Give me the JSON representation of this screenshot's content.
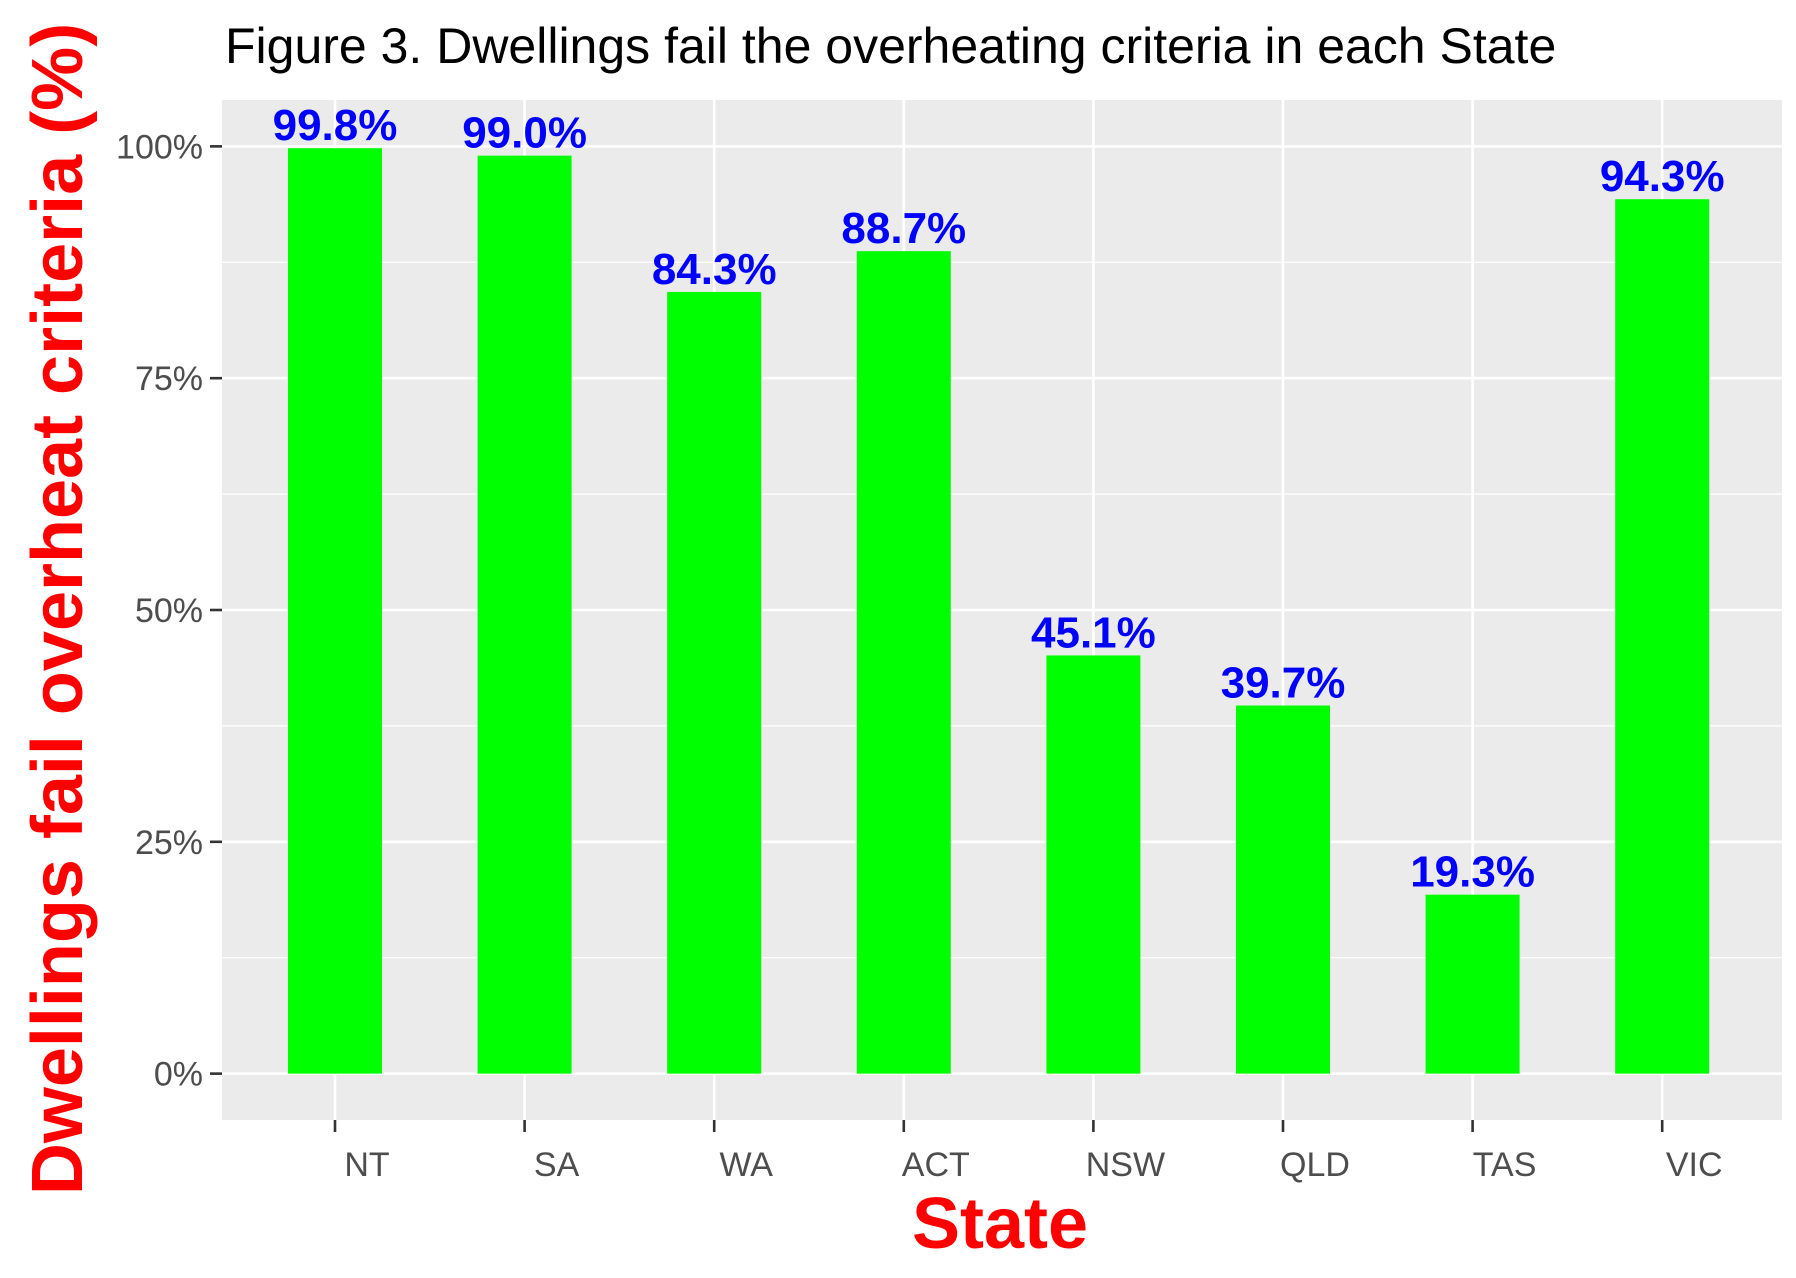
{
  "chart_data": {
    "type": "bar",
    "title": "Figure 3. Dwellings fail the overheating criteria in each State",
    "xlabel": "State",
    "ylabel": "Dwellings fail overheat criteria (%)",
    "categories": [
      "NT",
      "SA",
      "WA",
      "ACT",
      "NSW",
      "QLD",
      "TAS",
      "VIC"
    ],
    "values": [
      99.8,
      99.0,
      84.3,
      88.7,
      45.1,
      39.7,
      19.3,
      94.3
    ],
    "data_labels": [
      "99.8%",
      "99.0%",
      "84.3%",
      "88.7%",
      "45.1%",
      "39.7%",
      "19.3%",
      "94.3%"
    ],
    "ylim": [
      -5,
      105
    ],
    "yticks": [
      0,
      25,
      50,
      75,
      100
    ],
    "ytick_labels": [
      "0%",
      "25%",
      "50%",
      "75%",
      "100%"
    ],
    "grid": true,
    "legend": "none",
    "colors": {
      "bar": "#00FF00",
      "data_label": "#0000FF",
      "axis_title": "#FF0000",
      "panel_background": "#EBEBEB",
      "grid": "#FFFFFF",
      "tick_label": "#4D4D4D",
      "title": "#000000"
    }
  }
}
